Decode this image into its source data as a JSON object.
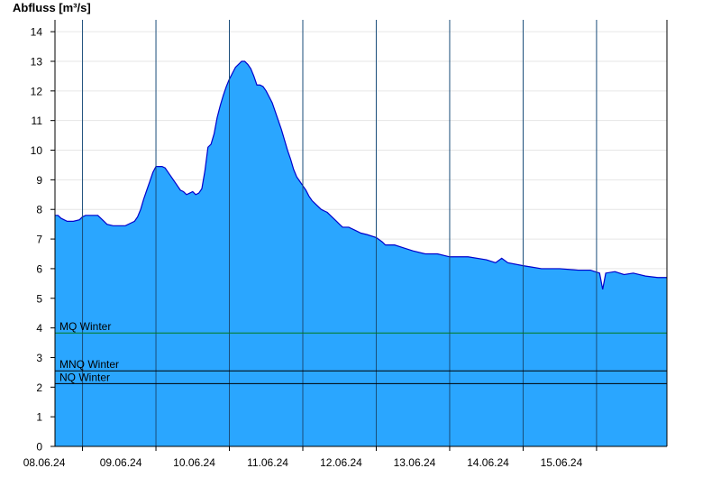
{
  "chart_data": {
    "type": "area",
    "ylabel": "Abfluss [m³/s]",
    "ylim": [
      0,
      14.4
    ],
    "yticks": [
      0,
      1,
      2,
      3,
      4,
      5,
      6,
      7,
      8,
      9,
      10,
      11,
      12,
      13,
      14
    ],
    "xlim": [
      "2024-06-07T15:00",
      "2024-06-15T23:00"
    ],
    "x_tick_labels": [
      "08.06.24",
      "09.06.24",
      "10.06.24",
      "11.06.24",
      "12.06.24",
      "13.06.24",
      "14.06.24",
      "15.06.24"
    ],
    "day_boundaries": [
      "2024-06-08T00:00",
      "2024-06-09T00:00",
      "2024-06-10T00:00",
      "2024-06-11T00:00",
      "2024-06-12T00:00",
      "2024-06-13T00:00",
      "2024-06-14T00:00",
      "2024-06-15T00:00"
    ],
    "grid": true,
    "fill_color": "#2aa6ff",
    "line_color": "#0000cc",
    "series": [
      {
        "values": [
          [
            "2024-06-07T15:00",
            7.8
          ],
          [
            "2024-06-07T16:00",
            7.8
          ],
          [
            "2024-06-07T17:00",
            7.7
          ],
          [
            "2024-06-07T19:00",
            7.6
          ],
          [
            "2024-06-07T21:00",
            7.6
          ],
          [
            "2024-06-07T23:00",
            7.65
          ],
          [
            "2024-06-08T00:00",
            7.75
          ],
          [
            "2024-06-08T01:00",
            7.8
          ],
          [
            "2024-06-08T03:00",
            7.8
          ],
          [
            "2024-06-08T05:00",
            7.8
          ],
          [
            "2024-06-08T06:00",
            7.7
          ],
          [
            "2024-06-08T07:00",
            7.6
          ],
          [
            "2024-06-08T08:00",
            7.5
          ],
          [
            "2024-06-08T10:00",
            7.45
          ],
          [
            "2024-06-08T12:00",
            7.45
          ],
          [
            "2024-06-08T14:00",
            7.45
          ],
          [
            "2024-06-08T16:00",
            7.55
          ],
          [
            "2024-06-08T17:00",
            7.6
          ],
          [
            "2024-06-08T18:00",
            7.75
          ],
          [
            "2024-06-08T19:00",
            8.0
          ],
          [
            "2024-06-08T20:00",
            8.35
          ],
          [
            "2024-06-08T21:00",
            8.65
          ],
          [
            "2024-06-08T22:00",
            8.95
          ],
          [
            "2024-06-08T23:00",
            9.25
          ],
          [
            "2024-06-09T00:00",
            9.45
          ],
          [
            "2024-06-09T01:00",
            9.45
          ],
          [
            "2024-06-09T02:00",
            9.45
          ],
          [
            "2024-06-09T03:00",
            9.4
          ],
          [
            "2024-06-09T04:00",
            9.25
          ],
          [
            "2024-06-09T05:00",
            9.1
          ],
          [
            "2024-06-09T06:00",
            8.95
          ],
          [
            "2024-06-09T07:00",
            8.8
          ],
          [
            "2024-06-09T08:00",
            8.65
          ],
          [
            "2024-06-09T09:00",
            8.6
          ],
          [
            "2024-06-09T10:00",
            8.5
          ],
          [
            "2024-06-09T11:00",
            8.55
          ],
          [
            "2024-06-09T12:00",
            8.6
          ],
          [
            "2024-06-09T13:00",
            8.5
          ],
          [
            "2024-06-09T14:00",
            8.55
          ],
          [
            "2024-06-09T15:00",
            8.7
          ],
          [
            "2024-06-09T16:00",
            9.3
          ],
          [
            "2024-06-09T17:00",
            10.1
          ],
          [
            "2024-06-09T18:00",
            10.2
          ],
          [
            "2024-06-09T19:00",
            10.55
          ],
          [
            "2024-06-09T20:00",
            11.1
          ],
          [
            "2024-06-09T21:00",
            11.5
          ],
          [
            "2024-06-09T22:00",
            11.85
          ],
          [
            "2024-06-09T23:00",
            12.15
          ],
          [
            "2024-06-10T00:00",
            12.4
          ],
          [
            "2024-06-10T01:00",
            12.6
          ],
          [
            "2024-06-10T02:00",
            12.8
          ],
          [
            "2024-06-10T03:00",
            12.9
          ],
          [
            "2024-06-10T04:00",
            13.0
          ],
          [
            "2024-06-10T05:00",
            13.0
          ],
          [
            "2024-06-10T06:00",
            12.9
          ],
          [
            "2024-06-10T07:00",
            12.75
          ],
          [
            "2024-06-10T08:00",
            12.5
          ],
          [
            "2024-06-10T09:00",
            12.2
          ],
          [
            "2024-06-10T10:00",
            12.2
          ],
          [
            "2024-06-10T11:00",
            12.15
          ],
          [
            "2024-06-10T12:00",
            12.0
          ],
          [
            "2024-06-10T13:00",
            11.8
          ],
          [
            "2024-06-10T14:00",
            11.6
          ],
          [
            "2024-06-10T15:00",
            11.3
          ],
          [
            "2024-06-10T16:00",
            11.0
          ],
          [
            "2024-06-10T17:00",
            10.7
          ],
          [
            "2024-06-10T18:00",
            10.35
          ],
          [
            "2024-06-10T19:00",
            10.0
          ],
          [
            "2024-06-10T20:00",
            9.7
          ],
          [
            "2024-06-10T21:00",
            9.35
          ],
          [
            "2024-06-10T22:00",
            9.1
          ],
          [
            "2024-06-10T23:00",
            8.95
          ],
          [
            "2024-06-11T00:00",
            8.8
          ],
          [
            "2024-06-11T01:00",
            8.65
          ],
          [
            "2024-06-11T02:00",
            8.45
          ],
          [
            "2024-06-11T03:00",
            8.3
          ],
          [
            "2024-06-11T04:00",
            8.2
          ],
          [
            "2024-06-11T05:00",
            8.1
          ],
          [
            "2024-06-11T06:00",
            8.0
          ],
          [
            "2024-06-11T07:00",
            7.95
          ],
          [
            "2024-06-11T08:00",
            7.9
          ],
          [
            "2024-06-11T09:00",
            7.8
          ],
          [
            "2024-06-11T10:00",
            7.7
          ],
          [
            "2024-06-11T11:00",
            7.6
          ],
          [
            "2024-06-11T12:00",
            7.5
          ],
          [
            "2024-06-11T13:00",
            7.4
          ],
          [
            "2024-06-11T15:00",
            7.4
          ],
          [
            "2024-06-11T17:00",
            7.3
          ],
          [
            "2024-06-11T19:00",
            7.2
          ],
          [
            "2024-06-11T21:00",
            7.15
          ],
          [
            "2024-06-12T00:00",
            7.05
          ],
          [
            "2024-06-12T02:00",
            6.9
          ],
          [
            "2024-06-12T03:00",
            6.8
          ],
          [
            "2024-06-12T06:00",
            6.8
          ],
          [
            "2024-06-12T09:00",
            6.7
          ],
          [
            "2024-06-12T12:00",
            6.6
          ],
          [
            "2024-06-12T16:00",
            6.5
          ],
          [
            "2024-06-12T20:00",
            6.5
          ],
          [
            "2024-06-13T00:00",
            6.4
          ],
          [
            "2024-06-13T06:00",
            6.4
          ],
          [
            "2024-06-13T12:00",
            6.3
          ],
          [
            "2024-06-13T15:00",
            6.2
          ],
          [
            "2024-06-13T17:00",
            6.35
          ],
          [
            "2024-06-13T19:00",
            6.2
          ],
          [
            "2024-06-14T00:00",
            6.1
          ],
          [
            "2024-06-14T03:00",
            6.05
          ],
          [
            "2024-06-14T06:00",
            6.0
          ],
          [
            "2024-06-14T12:00",
            6.0
          ],
          [
            "2024-06-14T18:00",
            5.95
          ],
          [
            "2024-06-14T22:00",
            5.95
          ],
          [
            "2024-06-15T01:00",
            5.85
          ],
          [
            "2024-06-15T02:00",
            5.3
          ],
          [
            "2024-06-15T03:00",
            5.85
          ],
          [
            "2024-06-15T06:00",
            5.9
          ],
          [
            "2024-06-15T09:00",
            5.8
          ],
          [
            "2024-06-15T12:00",
            5.85
          ],
          [
            "2024-06-15T16:00",
            5.75
          ],
          [
            "2024-06-15T20:00",
            5.7
          ],
          [
            "2024-06-15T23:00",
            5.7
          ]
        ]
      }
    ],
    "reference_lines": [
      {
        "label": "MQ Winter",
        "value": 3.83,
        "color": "#007a1c"
      },
      {
        "label": "MNQ Winter",
        "value": 2.55,
        "color": "#000000"
      },
      {
        "label": "NQ Winter",
        "value": 2.12,
        "color": "#000000"
      }
    ]
  }
}
